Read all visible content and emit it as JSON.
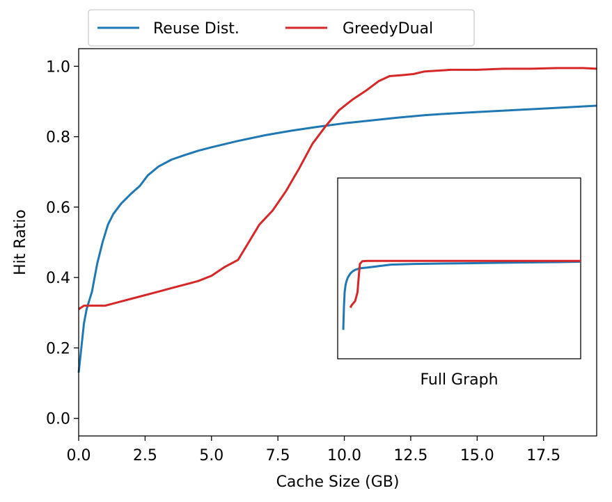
{
  "chart_data": {
    "type": "line",
    "xlabel": "Cache Size (GB)",
    "ylabel": "Hit Ratio",
    "xlim": [
      0,
      19.5
    ],
    "ylim": [
      -0.05,
      1.05
    ],
    "xticks": [
      0.0,
      2.5,
      5.0,
      7.5,
      10.0,
      12.5,
      15.0,
      17.5
    ],
    "xtick_labels": [
      "0.0",
      "2.5",
      "5.0",
      "7.5",
      "10.0",
      "12.5",
      "15.0",
      "17.5"
    ],
    "yticks": [
      0.0,
      0.2,
      0.4,
      0.6,
      0.8,
      1.0
    ],
    "ytick_labels": [
      "0.0",
      "0.2",
      "0.4",
      "0.6",
      "0.8",
      "1.0"
    ],
    "legend_position": "top-left",
    "series": [
      {
        "name": "Reuse Dist.",
        "color": "#1f77b4",
        "x": [
          0.0,
          0.1,
          0.2,
          0.3,
          0.5,
          0.7,
          0.9,
          1.1,
          1.3,
          1.6,
          2.0,
          2.3,
          2.6,
          3.0,
          3.5,
          4.0,
          4.5,
          5.0,
          6.0,
          7.0,
          8.0,
          9.0,
          10.0,
          11.0,
          12.0,
          13.0,
          14.0,
          15.0,
          16.0,
          17.0,
          18.0,
          19.5
        ],
        "y": [
          0.13,
          0.2,
          0.27,
          0.31,
          0.36,
          0.44,
          0.5,
          0.55,
          0.58,
          0.61,
          0.64,
          0.66,
          0.69,
          0.715,
          0.735,
          0.748,
          0.76,
          0.77,
          0.788,
          0.804,
          0.817,
          0.828,
          0.838,
          0.846,
          0.854,
          0.861,
          0.866,
          0.87,
          0.874,
          0.878,
          0.882,
          0.888
        ]
      },
      {
        "name": "GreedyDual",
        "color": "#d62728",
        "x": [
          0.0,
          0.2,
          0.5,
          1.0,
          1.5,
          2.0,
          2.5,
          3.0,
          3.5,
          4.0,
          4.5,
          5.0,
          5.5,
          6.0,
          6.4,
          6.8,
          7.3,
          7.8,
          8.3,
          8.8,
          9.3,
          9.8,
          10.3,
          10.8,
          11.3,
          11.7,
          12.2,
          12.6,
          13.0,
          14.0,
          15.0,
          16.0,
          17.0,
          18.0,
          19.0,
          19.5
        ],
        "y": [
          0.31,
          0.32,
          0.32,
          0.32,
          0.33,
          0.34,
          0.35,
          0.36,
          0.37,
          0.38,
          0.39,
          0.405,
          0.43,
          0.45,
          0.5,
          0.55,
          0.59,
          0.645,
          0.71,
          0.78,
          0.83,
          0.875,
          0.905,
          0.93,
          0.958,
          0.972,
          0.975,
          0.978,
          0.985,
          0.99,
          0.99,
          0.993,
          0.993,
          0.995,
          0.995,
          0.993
        ]
      }
    ],
    "inset": {
      "label": "Full Graph",
      "series": [
        {
          "name": "Reuse Dist.",
          "color": "#1f77b4",
          "x": [
            0.0,
            0.003,
            0.006,
            0.01,
            0.015,
            0.02,
            0.03,
            0.04,
            0.05,
            0.07,
            0.1,
            0.15,
            0.2,
            0.3,
            0.4,
            0.5,
            0.6,
            0.7,
            0.8,
            0.9,
            1.0
          ],
          "y": [
            0.195,
            0.35,
            0.45,
            0.5,
            0.53,
            0.55,
            0.575,
            0.59,
            0.6,
            0.61,
            0.615,
            0.625,
            0.635,
            0.64,
            0.642,
            0.644,
            0.646,
            0.648,
            0.65,
            0.652,
            0.655
          ]
        },
        {
          "name": "GreedyDual",
          "color": "#d62728",
          "x": [
            0.03,
            0.035,
            0.05,
            0.06,
            0.065,
            0.07,
            0.08,
            0.1,
            0.2,
            0.4,
            0.6,
            0.8,
            1.0
          ],
          "y": [
            0.345,
            0.36,
            0.39,
            0.45,
            0.55,
            0.64,
            0.658,
            0.66,
            0.66,
            0.66,
            0.66,
            0.66,
            0.66
          ]
        }
      ]
    }
  }
}
